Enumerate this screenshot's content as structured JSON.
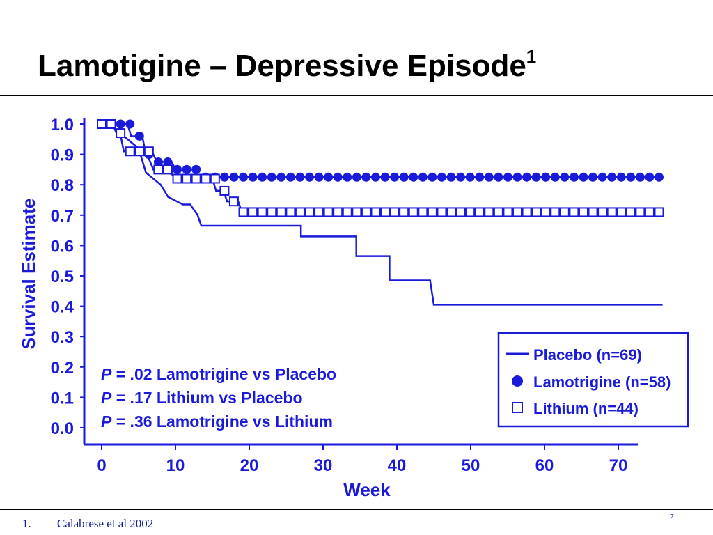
{
  "slide": {
    "title": "Lamotigine – Depressive Episode",
    "title_superscript": "1",
    "footnote_number": "1.",
    "footnote_text": "Calabrese et al 2002",
    "page_number": "7"
  },
  "colors": {
    "chart_blue": "#1a1adb",
    "text_black": "#000000"
  },
  "chart_data": {
    "type": "line",
    "title": "",
    "xlabel": "Week",
    "ylabel": "Survival Estimate",
    "xlim": [
      0,
      70
    ],
    "ylim": [
      0,
      1.0
    ],
    "xticks": [
      0,
      10,
      20,
      30,
      40,
      50,
      60,
      70
    ],
    "yticks": [
      0.0,
      0.1,
      0.2,
      0.3,
      0.4,
      0.5,
      0.6,
      0.7,
      0.8,
      0.9,
      1.0
    ],
    "ytick_labels": [
      "0.0",
      "0.1",
      "0.2",
      "0.3",
      "0.4",
      "0.5",
      "0.6",
      "0.7",
      "0.8",
      "0.9",
      "1.0"
    ],
    "xtick_labels": [
      "0",
      "10",
      "20",
      "30",
      "40",
      "50",
      "60",
      "70"
    ],
    "grid": false,
    "legend_position": "bottom-right",
    "series": [
      {
        "name": "Placebo (n=69)",
        "marker": "line",
        "points": [
          [
            0,
            1.0
          ],
          [
            2,
            1.0
          ],
          [
            3,
            0.96
          ],
          [
            5,
            0.92
          ],
          [
            6,
            0.84
          ],
          [
            8,
            0.8
          ],
          [
            9,
            0.76
          ],
          [
            11,
            0.735
          ],
          [
            12,
            0.735
          ],
          [
            13,
            0.7
          ],
          [
            13.5,
            0.665
          ],
          [
            27,
            0.665
          ],
          [
            27,
            0.63
          ],
          [
            34.5,
            0.63
          ],
          [
            34.5,
            0.565
          ],
          [
            39,
            0.565
          ],
          [
            39,
            0.485
          ],
          [
            44.5,
            0.485
          ],
          [
            45,
            0.405
          ],
          [
            76,
            0.405
          ]
        ]
      },
      {
        "name": "Lamotrigine (n=58)",
        "marker": "circle",
        "points": [
          [
            0,
            1.0
          ],
          [
            3.5,
            1.0
          ],
          [
            4,
            0.96
          ],
          [
            5.5,
            0.96
          ],
          [
            6,
            0.9
          ],
          [
            7,
            0.9
          ],
          [
            7.5,
            0.875
          ],
          [
            9.5,
            0.875
          ],
          [
            10,
            0.85
          ],
          [
            12.5,
            0.85
          ],
          [
            13,
            0.825
          ],
          [
            76,
            0.825
          ]
        ]
      },
      {
        "name": "Lithium (n=44)",
        "marker": "square",
        "points": [
          [
            0,
            1.0
          ],
          [
            1.5,
            1.0
          ],
          [
            2,
            0.97
          ],
          [
            2.5,
            0.97
          ],
          [
            3,
            0.91
          ],
          [
            6,
            0.91
          ],
          [
            7,
            0.85
          ],
          [
            9,
            0.85
          ],
          [
            10,
            0.82
          ],
          [
            12.5,
            0.82
          ],
          [
            13,
            0.82
          ],
          [
            15,
            0.82
          ],
          [
            15.5,
            0.78
          ],
          [
            16.5,
            0.78
          ],
          [
            17,
            0.745
          ],
          [
            18.5,
            0.745
          ],
          [
            19,
            0.71
          ],
          [
            76,
            0.71
          ]
        ]
      }
    ],
    "annotations": [
      {
        "p": "P",
        "rest": " = .02 Lamotrigine vs Placebo"
      },
      {
        "p": "P",
        "rest": " = .17 Lithium vs Placebo"
      },
      {
        "p": "P",
        "rest": " = .36 Lamotrigine vs Lithium"
      }
    ]
  }
}
